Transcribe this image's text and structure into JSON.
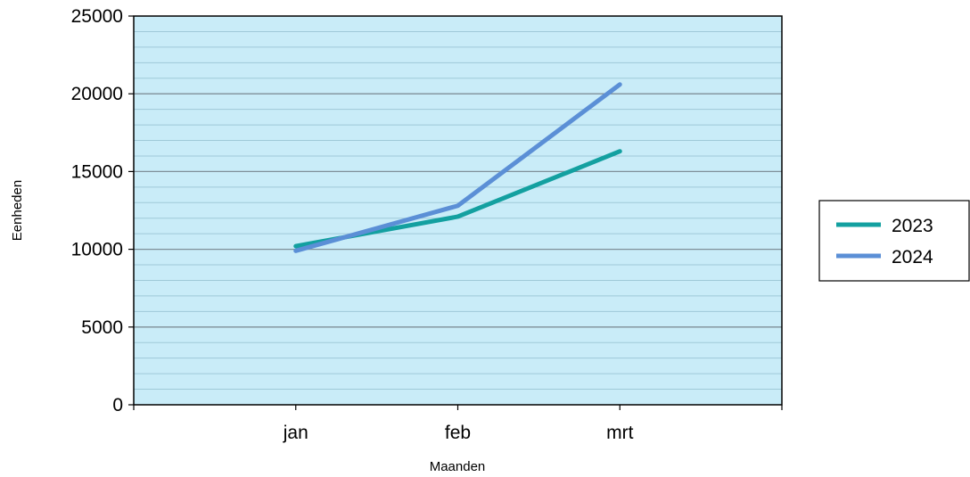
{
  "chart_data": {
    "type": "line",
    "categories": [
      "jan",
      "feb",
      "mrt"
    ],
    "series": [
      {
        "name": "2023",
        "values": [
          10200,
          12100,
          16300
        ],
        "color": "#13a0a0"
      },
      {
        "name": "2024",
        "values": [
          9900,
          12800,
          20600
        ],
        "color": "#5b8fd6"
      }
    ],
    "xlabel": "Maanden",
    "ylabel": "Eenheden",
    "ylim": [
      0,
      25000
    ],
    "y_major_ticks": [
      "0",
      "5000",
      "10000",
      "15000",
      "20000",
      "25000"
    ],
    "y_minor_step": 1000,
    "grid": true,
    "legend_position": "right",
    "plot_background": "#c9ecf8",
    "grid_major_color": "#7f8f99",
    "grid_minor_color": "#9fc9d8"
  }
}
